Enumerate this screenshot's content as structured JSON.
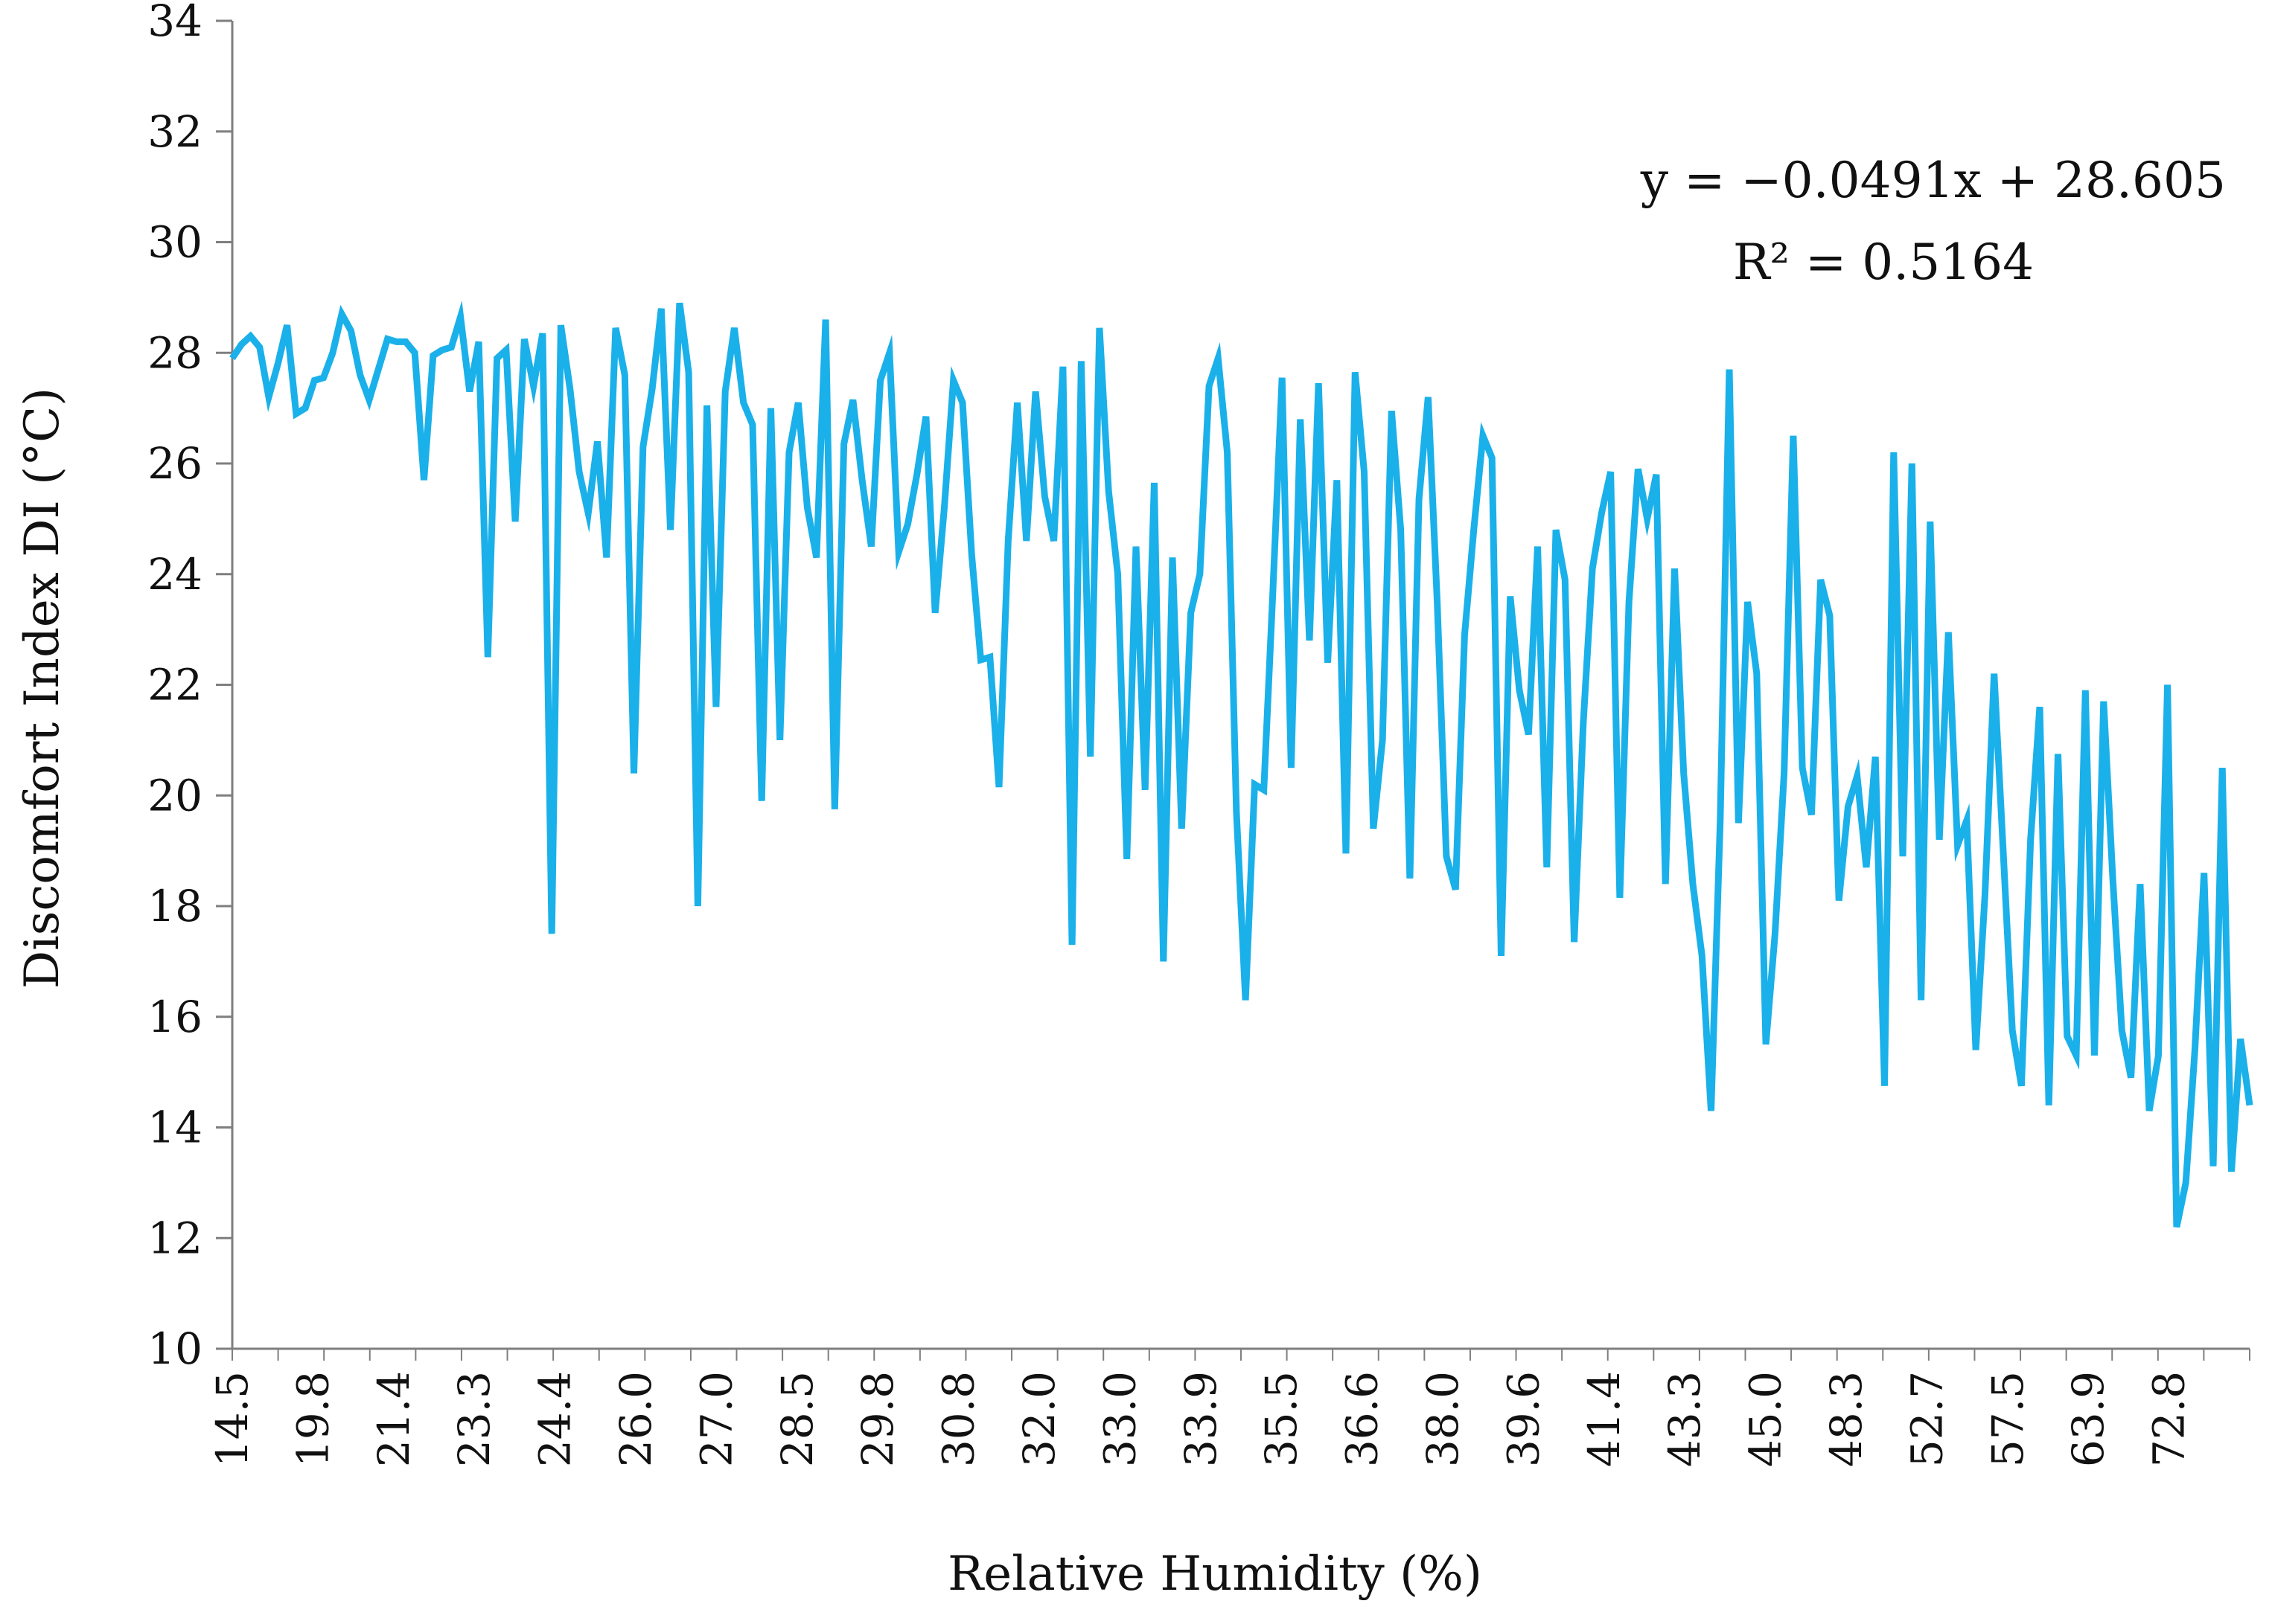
{
  "chart_data": {
    "type": "line",
    "title": "",
    "xlabel": "Relative Humidity (%)",
    "ylabel": "Discomfort Index DI (°C)",
    "ylim": [
      10,
      34
    ],
    "yticks": [
      10,
      12,
      14,
      16,
      18,
      20,
      22,
      24,
      26,
      28,
      30,
      32,
      34
    ],
    "grid": false,
    "legend": "none",
    "x_tick_labels": [
      "14.5",
      "19.8",
      "21.4",
      "23.3",
      "24.4",
      "26.0",
      "27.0",
      "28.5",
      "29.8",
      "30.8",
      "32.0",
      "33.0",
      "33.9",
      "35.5",
      "36.6",
      "38.0",
      "39.6",
      "41.4",
      "43.3",
      "45.0",
      "48.3",
      "52.7",
      "57.5",
      "63.9",
      "72.8"
    ],
    "annotations": [
      "y = −0.0491x + 28.605",
      "R² = 0.5164"
    ],
    "series": [
      {
        "name": "Discomfort Index DI",
        "color": "#1AB0EA",
        "values": [
          27.9,
          28.15,
          28.3,
          28.1,
          27.2,
          27.8,
          28.5,
          26.9,
          27.0,
          27.5,
          27.55,
          28.0,
          28.7,
          28.4,
          27.6,
          27.15,
          27.7,
          28.25,
          28.2,
          28.2,
          28.0,
          25.7,
          27.95,
          28.05,
          28.1,
          28.65,
          27.3,
          28.2,
          22.5,
          27.9,
          28.05,
          24.95,
          28.25,
          27.4,
          28.35,
          17.5,
          28.5,
          27.35,
          25.85,
          25.1,
          26.4,
          24.3,
          28.45,
          27.6,
          20.4,
          26.3,
          27.35,
          28.8,
          24.8,
          28.9,
          27.65,
          18.0,
          27.05,
          21.6,
          27.3,
          28.45,
          27.1,
          26.7,
          19.9,
          27.0,
          21.0,
          26.2,
          27.1,
          25.2,
          24.3,
          28.6,
          19.75,
          26.35,
          27.15,
          25.7,
          24.5,
          27.5,
          28.0,
          24.4,
          24.9,
          25.8,
          26.85,
          23.3,
          25.2,
          27.5,
          27.1,
          24.35,
          22.45,
          22.5,
          20.15,
          24.6,
          27.1,
          24.6,
          27.3,
          25.4,
          24.6,
          27.75,
          17.3,
          27.85,
          20.7,
          28.45,
          25.5,
          24.0,
          18.85,
          24.5,
          20.1,
          25.65,
          17.0,
          24.3,
          19.4,
          23.3,
          24.0,
          27.4,
          27.9,
          26.2,
          19.7,
          16.3,
          20.2,
          20.1,
          23.7,
          27.55,
          20.5,
          26.8,
          22.8,
          27.45,
          22.4,
          25.7,
          18.95,
          27.65,
          25.85,
          19.4,
          21.0,
          26.95,
          24.8,
          18.5,
          25.35,
          27.2,
          23.5,
          18.9,
          18.3,
          22.9,
          24.8,
          26.5,
          26.1,
          17.1,
          23.6,
          21.9,
          21.1,
          24.5,
          18.7,
          24.8,
          23.9,
          17.35,
          21.3,
          24.1,
          25.1,
          25.85,
          18.15,
          23.5,
          25.9,
          25.0,
          25.8,
          18.4,
          24.1,
          20.4,
          18.4,
          17.1,
          14.3,
          19.55,
          27.7,
          19.5,
          23.5,
          22.2,
          15.5,
          17.5,
          20.4,
          26.5,
          20.5,
          19.65,
          23.9,
          23.25,
          18.1,
          19.8,
          20.35,
          18.7,
          20.7,
          14.75,
          26.2,
          18.9,
          26.0,
          16.3,
          24.95,
          19.2,
          22.95,
          19.1,
          19.55,
          15.4,
          18.2,
          22.2,
          19.0,
          15.75,
          14.75,
          19.2,
          21.6,
          14.4,
          20.75,
          15.65,
          15.3,
          21.9,
          15.3,
          21.7,
          18.5,
          15.75,
          14.9,
          18.4,
          14.3,
          15.3,
          22.0,
          12.2,
          13.0,
          15.4,
          18.6,
          13.3,
          20.5,
          13.2,
          15.6,
          14.4
        ]
      }
    ]
  }
}
